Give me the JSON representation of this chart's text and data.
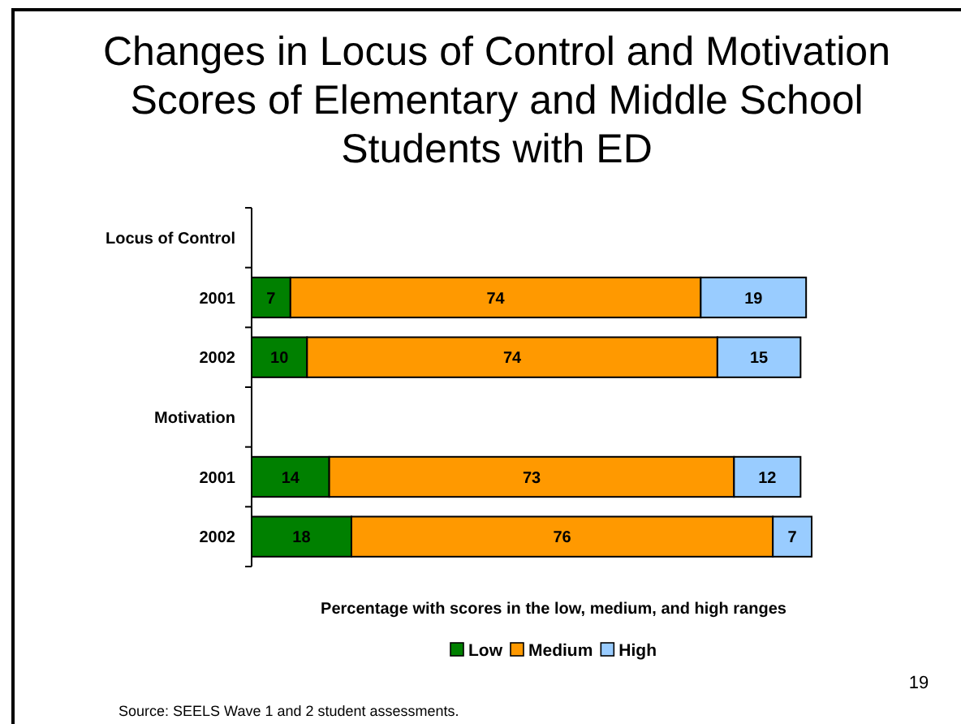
{
  "chart_data": {
    "type": "bar",
    "orientation": "horizontal",
    "stacked": true,
    "title": "Changes in Locus of Control and Motivation Scores of Elementary and Middle School Students with ED",
    "xlabel": "Percentage with scores in the low, medium, and high ranges",
    "categories": [
      "Locus of Control",
      "2001",
      "2002",
      "Motivation",
      "2001",
      "2002"
    ],
    "series": [
      {
        "name": "Low",
        "color": "#008000",
        "values": [
          null,
          7,
          10,
          null,
          14,
          18
        ]
      },
      {
        "name": "Medium",
        "color": "#ff9900",
        "values": [
          null,
          74,
          74,
          null,
          73,
          76
        ]
      },
      {
        "name": "High",
        "color": "#99ccff",
        "values": [
          null,
          19,
          15,
          null,
          12,
          7
        ]
      }
    ],
    "data_labels": true,
    "legend": "bottom",
    "annotations": [
      "Source: SEELS Wave 1 and 2 student assessments.",
      "19"
    ]
  }
}
